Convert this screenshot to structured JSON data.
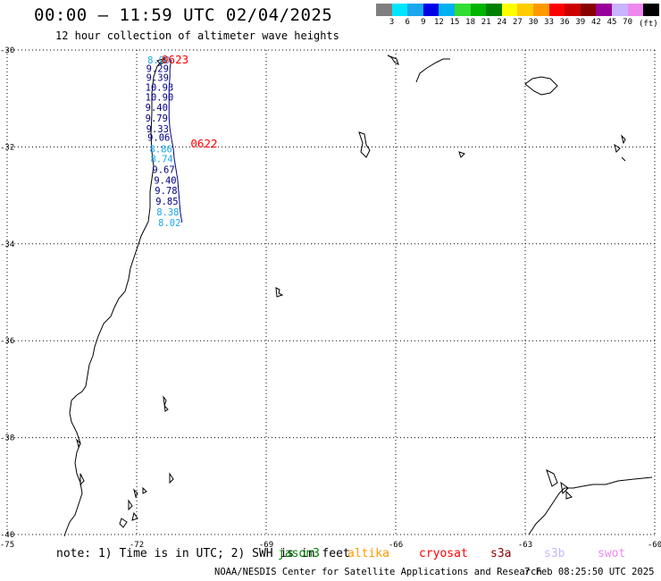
{
  "title": "00:00 — 11:59 UTC 02/04/2025",
  "subtitle": "12 hour collection of altimeter wave heights",
  "legend": {
    "unit": "(ft)",
    "levels": [
      {
        "label": "",
        "color": "#7f7f7f"
      },
      {
        "label": "3",
        "color": "#00e5ff"
      },
      {
        "label": "6",
        "color": "#1aa7ee"
      },
      {
        "label": "9",
        "color": "#0000e6"
      },
      {
        "label": "12",
        "color": "#00b0f0"
      },
      {
        "label": "15",
        "color": "#33dd33"
      },
      {
        "label": "18",
        "color": "#00b400"
      },
      {
        "label": "21",
        "color": "#008000"
      },
      {
        "label": "24",
        "color": "#ffff00"
      },
      {
        "label": "27",
        "color": "#ffcc00"
      },
      {
        "label": "30",
        "color": "#ff9900"
      },
      {
        "label": "33",
        "color": "#ff0000"
      },
      {
        "label": "36",
        "color": "#cc0000"
      },
      {
        "label": "39",
        "color": "#880000"
      },
      {
        "label": "42",
        "color": "#990099"
      },
      {
        "label": "45",
        "color": "#c8b4ff"
      },
      {
        "label": "70",
        "color": "#ee88ee"
      },
      {
        "label": "",
        "color": "#000000"
      }
    ]
  },
  "map": {
    "lon_range": [
      -75,
      -60
    ],
    "lat_range": [
      -40,
      -30
    ],
    "lon_ticks": [
      "-75",
      "-72",
      "-69",
      "-66",
      "-63",
      "-60"
    ],
    "lat_ticks": [
      "-30",
      "-32",
      "-34",
      "-36",
      "-38",
      "-40"
    ],
    "track_color": "#000080",
    "pass_label_color": "#ff0000",
    "pass_labels": [
      {
        "text": "0623",
        "lon": -71.42,
        "lat": -30.18
      },
      {
        "text": "0622",
        "lon": -70.75,
        "lat": -31.92
      }
    ],
    "swh_points": [
      {
        "text": "8.90",
        "lon": -71.75,
        "lat": -30.2,
        "color": "#1aa7ee"
      },
      {
        "text": "9.29",
        "lon": -71.78,
        "lat": -30.38,
        "color": "#000080"
      },
      {
        "text": "9.39",
        "lon": -71.78,
        "lat": -30.56,
        "color": "#000080"
      },
      {
        "text": "10.93",
        "lon": -71.8,
        "lat": -30.77,
        "color": "#000080"
      },
      {
        "text": "10.90",
        "lon": -71.8,
        "lat": -30.97,
        "color": "#000080"
      },
      {
        "text": "9.40",
        "lon": -71.8,
        "lat": -31.18,
        "color": "#000080"
      },
      {
        "text": "9.79",
        "lon": -71.8,
        "lat": -31.4,
        "color": "#000080"
      },
      {
        "text": "9.33",
        "lon": -71.78,
        "lat": -31.62,
        "color": "#000080"
      },
      {
        "text": "9.06",
        "lon": -71.75,
        "lat": -31.8,
        "color": "#000080"
      },
      {
        "text": "8.86",
        "lon": -71.7,
        "lat": -32.04,
        "color": "#1aa7ee"
      },
      {
        "text": "8.74",
        "lon": -71.68,
        "lat": -32.24,
        "color": "#1aa7ee"
      },
      {
        "text": "9.67",
        "lon": -71.64,
        "lat": -32.46,
        "color": "#000080"
      },
      {
        "text": "9.40",
        "lon": -71.6,
        "lat": -32.68,
        "color": "#000080"
      },
      {
        "text": "9.78",
        "lon": -71.58,
        "lat": -32.9,
        "color": "#000080"
      },
      {
        "text": "9.85",
        "lon": -71.56,
        "lat": -33.12,
        "color": "#000080"
      },
      {
        "text": "8.38",
        "lon": -71.54,
        "lat": -33.34,
        "color": "#1aa7ee"
      },
      {
        "text": "8.02",
        "lon": -71.5,
        "lat": -33.56,
        "color": "#1aa7ee"
      }
    ]
  },
  "note": {
    "text": "note: 1) Time is in UTC; 2) SWH is in feet",
    "satellites": [
      {
        "name": "jason3",
        "color": "#008000"
      },
      {
        "name": "altika",
        "color": "#ff9900"
      },
      {
        "name": "cryosat",
        "color": "#ff0000"
      },
      {
        "name": "s3a",
        "color": "#880000"
      },
      {
        "name": "s3b",
        "color": "#c8b4ff"
      },
      {
        "name": "swot",
        "color": "#ee88ee"
      }
    ]
  },
  "credit": "NOAA/NESDIS Center for Satellite Applications and Research",
  "updated": "7 Feb 08:25:50 UTC 2025"
}
